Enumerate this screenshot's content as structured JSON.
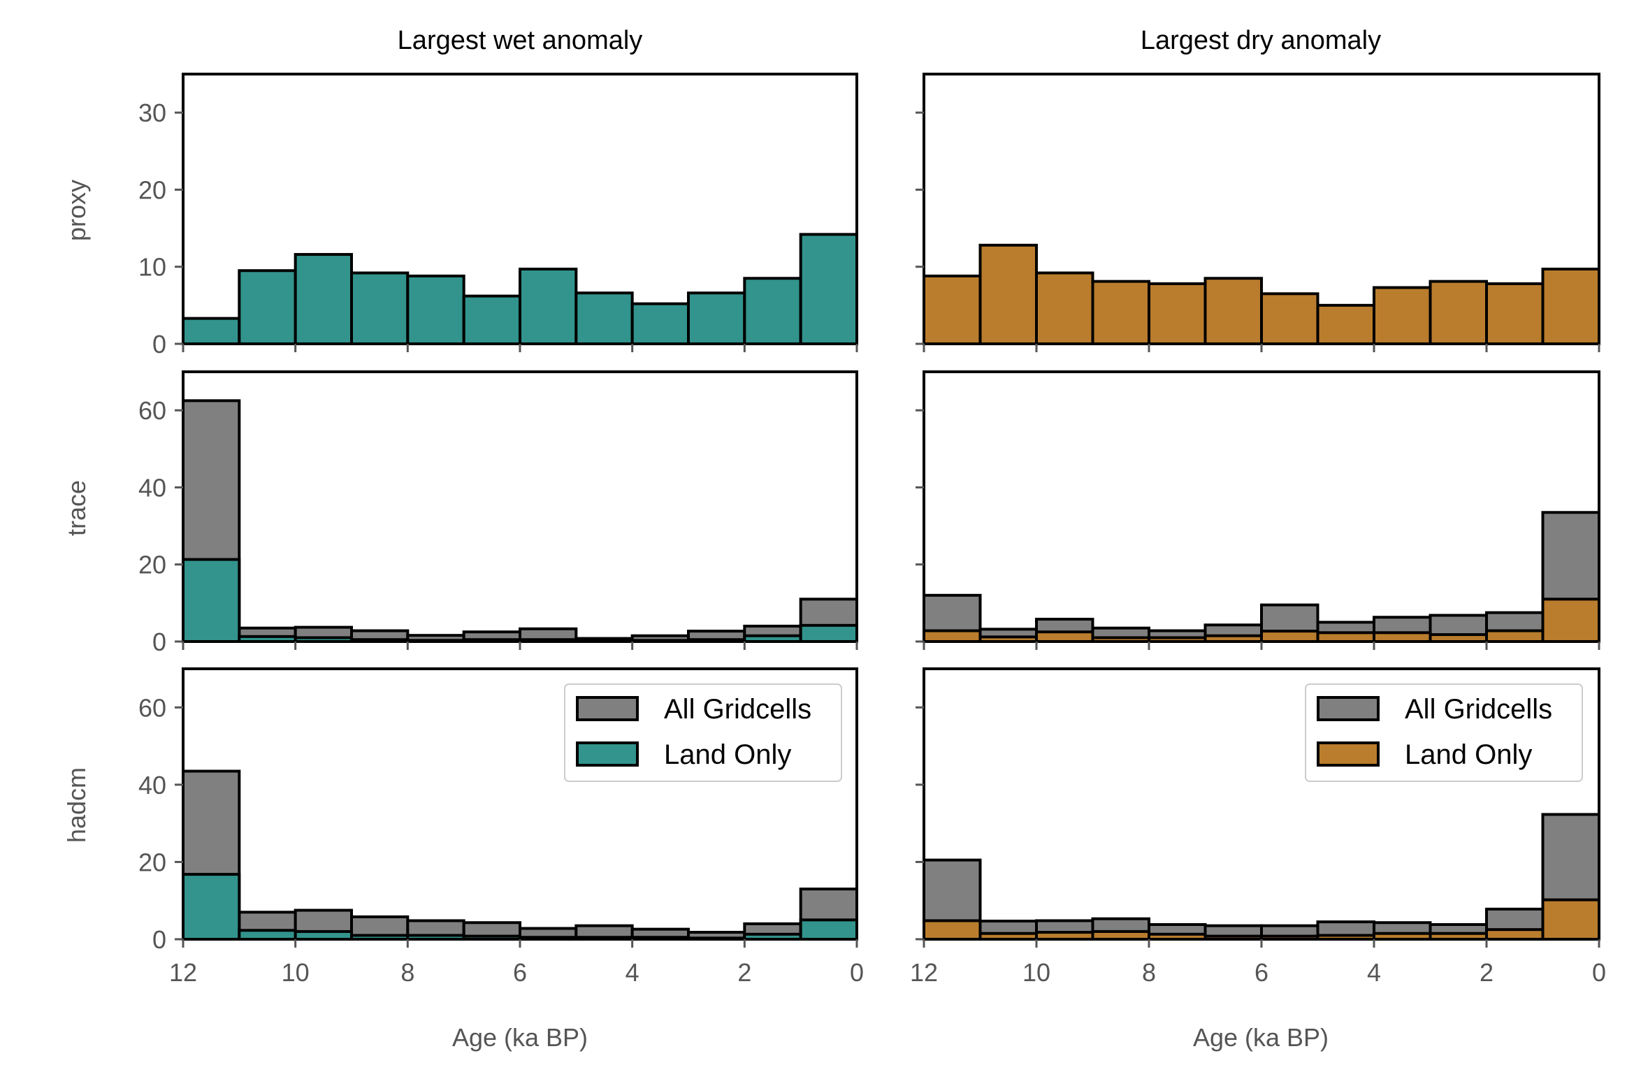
{
  "columns": [
    {
      "title": "Largest wet anomaly",
      "xlabel": "Age (ka BP)",
      "land_color": "#32948c"
    },
    {
      "title": "Largest dry anomaly",
      "xlabel": "Age (ka BP)",
      "land_color": "#ba7d2d"
    }
  ],
  "rows": [
    "proxy",
    "trace",
    "hadcm"
  ],
  "colors": {
    "all": "#808080",
    "edge": "#000000",
    "tick": "#555555"
  },
  "legend": {
    "all_label": "All Gridcells",
    "land_label": "Land Only"
  },
  "chart_data": [
    {
      "type": "bar",
      "title": "Largest wet anomaly",
      "row": "proxy",
      "xlabel": "Age (ka BP)",
      "ylabel": "proxy",
      "xlim": [
        12,
        0
      ],
      "ylim": [
        0,
        35
      ],
      "yticks": [
        0,
        10,
        20,
        30
      ],
      "xticks": [
        12,
        10,
        8,
        6,
        4,
        2,
        0
      ],
      "bin_edges": [
        12,
        11,
        10,
        9,
        8,
        7,
        6,
        5,
        4,
        3,
        2,
        1,
        0
      ],
      "series": [
        {
          "name": "Land Only",
          "values": [
            3.3,
            9.5,
            11.6,
            9.2,
            8.8,
            6.2,
            9.7,
            6.6,
            5.2,
            6.6,
            8.5,
            14.2
          ]
        }
      ]
    },
    {
      "type": "bar",
      "title": "Largest dry anomaly",
      "row": "proxy",
      "xlabel": "Age (ka BP)",
      "ylabel": "",
      "xlim": [
        12,
        0
      ],
      "ylim": [
        0,
        35
      ],
      "yticks": [
        0,
        10,
        20,
        30
      ],
      "xticks": [
        12,
        10,
        8,
        6,
        4,
        2,
        0
      ],
      "bin_edges": [
        12,
        11,
        10,
        9,
        8,
        7,
        6,
        5,
        4,
        3,
        2,
        1,
        0
      ],
      "series": [
        {
          "name": "Land Only",
          "values": [
            8.8,
            12.8,
            9.2,
            8.1,
            7.8,
            8.5,
            6.5,
            5.0,
            7.3,
            8.1,
            7.8,
            9.7
          ]
        }
      ]
    },
    {
      "type": "bar",
      "title": "Largest wet anomaly",
      "row": "trace",
      "xlabel": "Age (ka BP)",
      "ylabel": "trace",
      "xlim": [
        12,
        0
      ],
      "ylim": [
        0,
        70
      ],
      "yticks": [
        0,
        20,
        40,
        60
      ],
      "xticks": [
        12,
        10,
        8,
        6,
        4,
        2,
        0
      ],
      "bin_edges": [
        12,
        11,
        10,
        9,
        8,
        7,
        6,
        5,
        4,
        3,
        2,
        1,
        0
      ],
      "series": [
        {
          "name": "All Gridcells",
          "values": [
            62.5,
            3.5,
            3.7,
            2.8,
            1.6,
            2.5,
            3.3,
            0.8,
            1.5,
            2.7,
            4.0,
            11.0
          ]
        },
        {
          "name": "Land Only",
          "values": [
            21.3,
            1.3,
            1.0,
            0.5,
            0.3,
            0.5,
            0.5,
            0.2,
            0.3,
            0.5,
            1.5,
            4.2
          ]
        }
      ]
    },
    {
      "type": "bar",
      "title": "Largest dry anomaly",
      "row": "trace",
      "xlabel": "Age (ka BP)",
      "ylabel": "",
      "xlim": [
        12,
        0
      ],
      "ylim": [
        0,
        70
      ],
      "yticks": [
        0,
        20,
        40,
        60
      ],
      "xticks": [
        12,
        10,
        8,
        6,
        4,
        2,
        0
      ],
      "bin_edges": [
        12,
        11,
        10,
        9,
        8,
        7,
        6,
        5,
        4,
        3,
        2,
        1,
        0
      ],
      "series": [
        {
          "name": "All Gridcells",
          "values": [
            12.0,
            3.2,
            5.8,
            3.5,
            2.8,
            4.3,
            9.5,
            5.0,
            6.3,
            6.8,
            7.5,
            33.5
          ]
        },
        {
          "name": "Land Only",
          "values": [
            2.8,
            1.2,
            2.5,
            1.0,
            1.0,
            1.5,
            2.7,
            2.3,
            2.3,
            1.8,
            2.8,
            11.0
          ]
        }
      ]
    },
    {
      "type": "bar",
      "title": "Largest wet anomaly",
      "row": "hadcm",
      "xlabel": "Age (ka BP)",
      "ylabel": "hadcm",
      "xlim": [
        12,
        0
      ],
      "ylim": [
        0,
        70
      ],
      "yticks": [
        0,
        20,
        40,
        60
      ],
      "xticks": [
        12,
        10,
        8,
        6,
        4,
        2,
        0
      ],
      "bin_edges": [
        12,
        11,
        10,
        9,
        8,
        7,
        6,
        5,
        4,
        3,
        2,
        1,
        0
      ],
      "legend_position": "upper right",
      "series": [
        {
          "name": "All Gridcells",
          "values": [
            43.5,
            7.0,
            7.5,
            5.8,
            4.8,
            4.3,
            2.8,
            3.5,
            2.6,
            1.8,
            4.0,
            13.0
          ]
        },
        {
          "name": "Land Only",
          "values": [
            16.8,
            2.3,
            2.0,
            1.0,
            1.0,
            0.8,
            0.5,
            0.5,
            0.5,
            0.3,
            1.3,
            5.0
          ]
        }
      ]
    },
    {
      "type": "bar",
      "title": "Largest dry anomaly",
      "row": "hadcm",
      "xlabel": "Age (ka BP)",
      "ylabel": "",
      "xlim": [
        12,
        0
      ],
      "ylim": [
        0,
        70
      ],
      "yticks": [
        0,
        20,
        40,
        60
      ],
      "xticks": [
        12,
        10,
        8,
        6,
        4,
        2,
        0
      ],
      "bin_edges": [
        12,
        11,
        10,
        9,
        8,
        7,
        6,
        5,
        4,
        3,
        2,
        1,
        0
      ],
      "legend_position": "upper right",
      "series": [
        {
          "name": "All Gridcells",
          "values": [
            20.5,
            4.7,
            4.8,
            5.3,
            3.8,
            3.5,
            3.5,
            4.5,
            4.3,
            3.8,
            7.8,
            32.3
          ]
        },
        {
          "name": "Land Only",
          "values": [
            4.8,
            1.5,
            1.8,
            2.0,
            1.3,
            0.8,
            0.8,
            1.0,
            1.5,
            1.5,
            2.5,
            10.2
          ]
        }
      ]
    }
  ]
}
